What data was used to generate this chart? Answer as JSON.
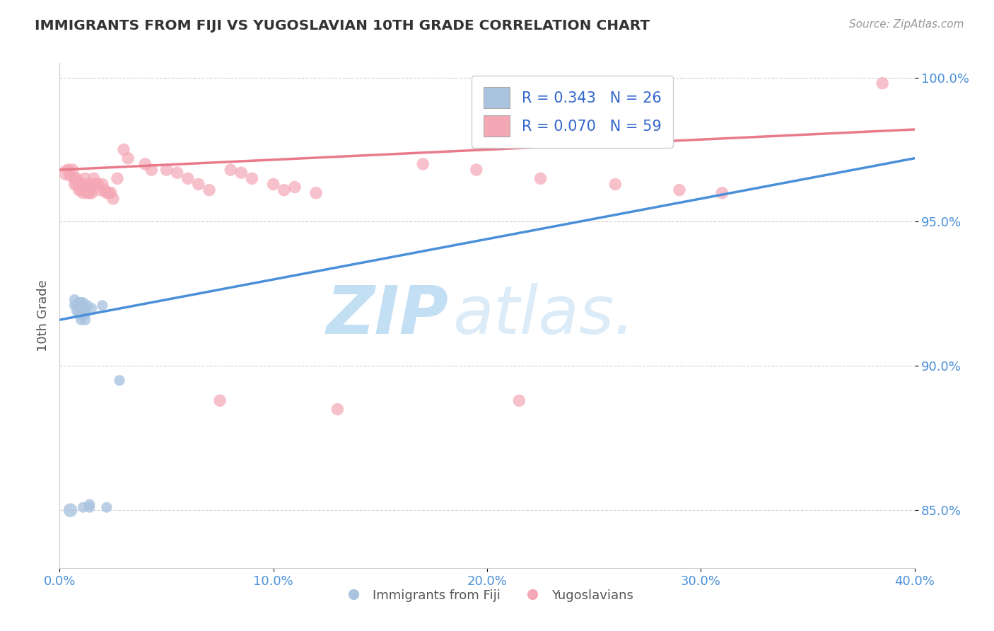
{
  "title": "IMMIGRANTS FROM FIJI VS YUGOSLAVIAN 10TH GRADE CORRELATION CHART",
  "source_text": "Source: ZipAtlas.com",
  "ylabel": "10th Grade",
  "xlim": [
    0.0,
    0.4
  ],
  "ylim": [
    0.83,
    1.005
  ],
  "ytick_labels": [
    "85.0%",
    "90.0%",
    "95.0%",
    "100.0%"
  ],
  "ytick_values": [
    0.85,
    0.9,
    0.95,
    1.0
  ],
  "xtick_labels": [
    "0.0%",
    "10.0%",
    "20.0%",
    "30.0%",
    "40.0%"
  ],
  "xtick_values": [
    0.0,
    0.1,
    0.2,
    0.3,
    0.4
  ],
  "fiji_color": "#aac4e0",
  "yugo_color": "#f4a7b5",
  "fiji_R": 0.343,
  "fiji_N": 26,
  "yugo_R": 0.07,
  "yugo_N": 59,
  "fiji_line_color": "#4a90d9",
  "yugo_line_color": "#e87a8a",
  "watermark_zip": "ZIP",
  "watermark_atlas": "atlas.",
  "legend_label_fiji": "Immigrants from Fiji",
  "legend_label_yugo": "Yugoslavians",
  "fiji_line_x": [
    0.0,
    0.4
  ],
  "fiji_line_y": [
    0.916,
    0.972
  ],
  "yugo_line_x": [
    0.0,
    0.4
  ],
  "yugo_line_y": [
    0.968,
    0.982
  ],
  "fiji_x": [
    0.005,
    0.007,
    0.007,
    0.008,
    0.008,
    0.009,
    0.009,
    0.009,
    0.01,
    0.01,
    0.01,
    0.01,
    0.011,
    0.011,
    0.011,
    0.011,
    0.012,
    0.012,
    0.012,
    0.013,
    0.014,
    0.014,
    0.015,
    0.02,
    0.022,
    0.028
  ],
  "fiji_y": [
    0.85,
    0.921,
    0.923,
    0.919,
    0.921,
    0.918,
    0.92,
    0.922,
    0.916,
    0.918,
    0.92,
    0.922,
    0.851,
    0.918,
    0.92,
    0.922,
    0.916,
    0.918,
    0.92,
    0.921,
    0.851,
    0.852,
    0.92,
    0.921,
    0.851,
    0.895
  ],
  "fiji_sizes": [
    200,
    120,
    120,
    120,
    120,
    120,
    120,
    120,
    120,
    120,
    120,
    120,
    120,
    120,
    120,
    120,
    120,
    120,
    120,
    120,
    120,
    120,
    120,
    120,
    120,
    120
  ],
  "yugo_x": [
    0.003,
    0.004,
    0.005,
    0.006,
    0.007,
    0.007,
    0.008,
    0.008,
    0.009,
    0.009,
    0.01,
    0.01,
    0.011,
    0.011,
    0.012,
    0.012,
    0.013,
    0.013,
    0.014,
    0.014,
    0.015,
    0.016,
    0.016,
    0.017,
    0.018,
    0.019,
    0.02,
    0.021,
    0.022,
    0.023,
    0.024,
    0.025,
    0.027,
    0.03,
    0.032,
    0.04,
    0.043,
    0.05,
    0.055,
    0.06,
    0.065,
    0.07,
    0.075,
    0.08,
    0.085,
    0.09,
    0.1,
    0.105,
    0.11,
    0.12,
    0.13,
    0.17,
    0.195,
    0.215,
    0.225,
    0.26,
    0.29,
    0.31,
    0.385
  ],
  "yugo_y": [
    0.967,
    0.968,
    0.966,
    0.968,
    0.963,
    0.965,
    0.963,
    0.965,
    0.961,
    0.963,
    0.961,
    0.963,
    0.96,
    0.962,
    0.963,
    0.965,
    0.96,
    0.962,
    0.96,
    0.962,
    0.96,
    0.963,
    0.965,
    0.963,
    0.963,
    0.961,
    0.963,
    0.961,
    0.96,
    0.96,
    0.96,
    0.958,
    0.965,
    0.975,
    0.972,
    0.97,
    0.968,
    0.968,
    0.967,
    0.965,
    0.963,
    0.961,
    0.888,
    0.968,
    0.967,
    0.965,
    0.963,
    0.961,
    0.962,
    0.96,
    0.885,
    0.97,
    0.968,
    0.888,
    0.965,
    0.963,
    0.961,
    0.96,
    0.998
  ],
  "yugo_sizes": [
    250,
    160,
    160,
    160,
    160,
    160,
    160,
    160,
    160,
    160,
    160,
    160,
    160,
    160,
    160,
    160,
    160,
    160,
    160,
    160,
    160,
    160,
    160,
    160,
    160,
    160,
    160,
    160,
    160,
    160,
    160,
    160,
    160,
    160,
    160,
    160,
    160,
    160,
    160,
    160,
    160,
    160,
    160,
    160,
    160,
    160,
    160,
    160,
    160,
    160,
    160,
    160,
    160,
    160,
    160,
    160,
    160,
    160,
    160
  ]
}
